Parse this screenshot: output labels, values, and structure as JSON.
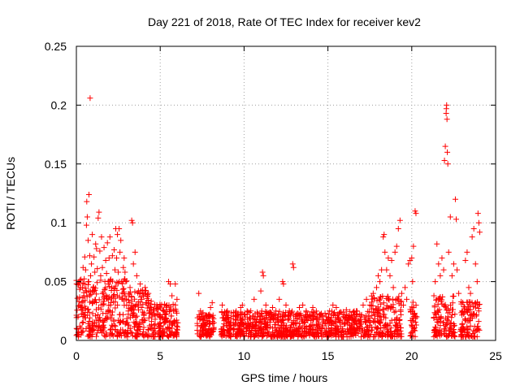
{
  "chart_data": {
    "type": "scatter",
    "title": "Day 221 of 2018, Rate Of TEC Index for receiver kev2",
    "xlabel": "GPS time / hours",
    "ylabel": "ROTI / TECUs",
    "xlim": [
      0,
      25
    ],
    "ylim": [
      0,
      0.25
    ],
    "xticks": [
      0,
      5,
      10,
      15,
      20,
      25
    ],
    "xtick_labels": [
      "0",
      "5",
      "10",
      "15",
      "20",
      "25"
    ],
    "yticks": [
      0,
      0.05,
      0.1,
      0.15,
      0.2,
      0.25
    ],
    "ytick_labels": [
      "0",
      "0.05",
      "0.1",
      "0.15",
      "0.2",
      "0.25"
    ],
    "grid": true,
    "marker": "+",
    "color": "#ff0000",
    "series": [
      {
        "name": "ROTI",
        "points": [
          [
            0.0,
            0.051
          ],
          [
            0.05,
            0.005
          ],
          [
            0.1,
            0.02
          ],
          [
            0.15,
            0.033
          ],
          [
            0.2,
            0.012
          ],
          [
            0.25,
            0.045
          ],
          [
            0.3,
            0.028
          ],
          [
            0.35,
            0.015
          ],
          [
            0.4,
            0.062
          ],
          [
            0.45,
            0.038
          ],
          [
            0.5,
            0.071
          ],
          [
            0.55,
            0.06
          ],
          [
            0.6,
            0.098
          ],
          [
            0.62,
            0.118
          ],
          [
            0.65,
            0.105
          ],
          [
            0.7,
            0.085
          ],
          [
            0.75,
            0.124
          ],
          [
            0.8,
            0.072
          ],
          [
            0.82,
            0.206
          ],
          [
            0.85,
            0.055
          ],
          [
            0.9,
            0.065
          ],
          [
            0.95,
            0.09
          ],
          [
            1.0,
            0.045
          ],
          [
            1.05,
            0.071
          ],
          [
            1.1,
            0.058
          ],
          [
            1.15,
            0.082
          ],
          [
            1.2,
            0.078
          ],
          [
            1.25,
            0.061
          ],
          [
            1.3,
            0.104
          ],
          [
            1.35,
            0.109
          ],
          [
            1.4,
            0.076
          ],
          [
            1.45,
            0.055
          ],
          [
            1.5,
            0.088
          ],
          [
            1.55,
            0.062
          ],
          [
            1.6,
            0.041
          ],
          [
            1.65,
            0.079
          ],
          [
            1.7,
            0.05
          ],
          [
            1.75,
            0.068
          ],
          [
            1.8,
            0.057
          ],
          [
            1.85,
            0.083
          ],
          [
            1.9,
            0.048
          ],
          [
            1.95,
            0.07
          ],
          [
            2.0,
            0.088
          ],
          [
            2.05,
            0.052
          ],
          [
            2.1,
            0.045
          ],
          [
            2.15,
            0.072
          ],
          [
            2.2,
            0.038
          ],
          [
            2.25,
            0.077
          ],
          [
            2.3,
            0.06
          ],
          [
            2.35,
            0.095
          ],
          [
            2.4,
            0.07
          ],
          [
            2.45,
            0.09
          ],
          [
            2.5,
            0.058
          ],
          [
            2.55,
            0.095
          ],
          [
            2.6,
            0.075
          ],
          [
            2.65,
            0.085
          ],
          [
            2.7,
            0.05
          ],
          [
            2.75,
            0.035
          ],
          [
            2.8,
            0.062
          ],
          [
            2.85,
            0.07
          ],
          [
            2.9,
            0.058
          ],
          [
            2.95,
            0.05
          ],
          [
            3.0,
            0.03
          ],
          [
            3.1,
            0.025
          ],
          [
            3.2,
            0.045
          ],
          [
            3.3,
            0.102
          ],
          [
            3.35,
            0.1
          ],
          [
            3.4,
            0.065
          ],
          [
            3.5,
            0.075
          ],
          [
            3.6,
            0.055
          ],
          [
            3.7,
            0.042
          ],
          [
            3.8,
            0.048
          ],
          [
            3.9,
            0.035
          ],
          [
            4.0,
            0.038
          ],
          [
            4.1,
            0.045
          ],
          [
            4.2,
            0.032
          ],
          [
            4.3,
            0.04
          ],
          [
            4.4,
            0.028
          ],
          [
            4.5,
            0.02
          ],
          [
            4.6,
            0.025
          ],
          [
            4.7,
            0.018
          ],
          [
            4.8,
            0.03
          ],
          [
            4.9,
            0.022
          ],
          [
            5.0,
            0.015
          ],
          [
            5.1,
            0.02
          ],
          [
            5.2,
            0.026
          ],
          [
            5.3,
            0.018
          ],
          [
            5.4,
            0.03
          ],
          [
            5.5,
            0.05
          ],
          [
            5.6,
            0.048
          ],
          [
            5.7,
            0.038
          ],
          [
            5.8,
            0.025
          ],
          [
            5.9,
            0.048
          ],
          [
            6.0,
            0.035
          ],
          [
            6.05,
            0.015
          ],
          [
            7.3,
            0.04
          ],
          [
            7.4,
            0.025
          ],
          [
            7.5,
            0.018
          ],
          [
            7.6,
            0.012
          ],
          [
            7.7,
            0.008
          ],
          [
            7.9,
            0.02
          ],
          [
            8.0,
            0.028
          ],
          [
            8.1,
            0.032
          ],
          [
            8.2,
            0.015
          ],
          [
            8.7,
            0.03
          ],
          [
            8.8,
            0.022
          ],
          [
            8.9,
            0.018
          ],
          [
            9.0,
            0.025
          ],
          [
            9.2,
            0.015
          ],
          [
            9.4,
            0.01
          ],
          [
            9.6,
            0.02
          ],
          [
            9.8,
            0.028
          ],
          [
            9.9,
            0.03
          ],
          [
            10.0,
            0.022
          ],
          [
            10.2,
            0.018
          ],
          [
            10.4,
            0.025
          ],
          [
            10.6,
            0.035
          ],
          [
            10.8,
            0.02
          ],
          [
            11.0,
            0.042
          ],
          [
            11.1,
            0.058
          ],
          [
            11.15,
            0.055
          ],
          [
            11.3,
            0.03
          ],
          [
            11.5,
            0.022
          ],
          [
            11.7,
            0.028
          ],
          [
            11.9,
            0.025
          ],
          [
            12.1,
            0.035
          ],
          [
            12.3,
            0.05
          ],
          [
            12.35,
            0.048
          ],
          [
            12.5,
            0.03
          ],
          [
            12.7,
            0.025
          ],
          [
            12.9,
            0.065
          ],
          [
            12.95,
            0.062
          ],
          [
            13.1,
            0.022
          ],
          [
            13.3,
            0.028
          ],
          [
            13.5,
            0.03
          ],
          [
            13.7,
            0.025
          ],
          [
            13.9,
            0.02
          ],
          [
            14.1,
            0.028
          ],
          [
            14.3,
            0.018
          ],
          [
            14.5,
            0.022
          ],
          [
            14.7,
            0.015
          ],
          [
            14.9,
            0.02
          ],
          [
            15.1,
            0.025
          ],
          [
            15.3,
            0.03
          ],
          [
            15.5,
            0.028
          ],
          [
            15.7,
            0.015
          ],
          [
            15.9,
            0.022
          ],
          [
            16.1,
            0.026
          ],
          [
            16.3,
            0.02
          ],
          [
            16.5,
            0.024
          ],
          [
            16.7,
            0.025
          ],
          [
            16.9,
            0.022
          ],
          [
            17.1,
            0.03
          ],
          [
            17.3,
            0.035
          ],
          [
            17.5,
            0.03
          ],
          [
            17.7,
            0.04
          ],
          [
            17.9,
            0.045
          ],
          [
            18.0,
            0.055
          ],
          [
            18.1,
            0.05
          ],
          [
            18.2,
            0.06
          ],
          [
            18.3,
            0.088
          ],
          [
            18.35,
            0.09
          ],
          [
            18.4,
            0.075
          ],
          [
            18.5,
            0.06
          ],
          [
            18.6,
            0.07
          ],
          [
            18.7,
            0.055
          ],
          [
            18.8,
            0.068
          ],
          [
            18.9,
            0.045
          ],
          [
            19.0,
            0.075
          ],
          [
            19.1,
            0.08
          ],
          [
            19.2,
            0.095
          ],
          [
            19.3,
            0.102
          ],
          [
            19.4,
            0.04
          ],
          [
            19.5,
            0.03
          ],
          [
            19.6,
            0.045
          ],
          [
            19.7,
            0.035
          ],
          [
            19.8,
            0.065
          ],
          [
            19.9,
            0.068
          ],
          [
            20.0,
            0.07
          ],
          [
            20.05,
            0.05
          ],
          [
            20.1,
            0.08
          ],
          [
            20.2,
            0.11
          ],
          [
            20.25,
            0.108
          ],
          [
            20.3,
            0.02
          ],
          [
            21.4,
            0.05
          ],
          [
            21.5,
            0.082
          ],
          [
            21.6,
            0.065
          ],
          [
            21.7,
            0.055
          ],
          [
            21.8,
            0.07
          ],
          [
            21.9,
            0.06
          ],
          [
            21.95,
            0.153
          ],
          [
            22.0,
            0.165
          ],
          [
            22.05,
            0.193
          ],
          [
            22.06,
            0.197
          ],
          [
            22.08,
            0.2
          ],
          [
            22.1,
            0.188
          ],
          [
            22.12,
            0.16
          ],
          [
            22.15,
            0.15
          ],
          [
            22.2,
            0.075
          ],
          [
            22.3,
            0.105
          ],
          [
            22.4,
            0.055
          ],
          [
            22.5,
            0.065
          ],
          [
            22.6,
            0.12
          ],
          [
            22.65,
            0.103
          ],
          [
            22.7,
            0.06
          ],
          [
            22.8,
            0.04
          ],
          [
            23.0,
            0.025
          ],
          [
            23.2,
            0.068
          ],
          [
            23.3,
            0.075
          ],
          [
            23.4,
            0.045
          ],
          [
            23.5,
            0.04
          ],
          [
            23.6,
            0.088
          ],
          [
            23.7,
            0.095
          ],
          [
            23.8,
            0.065
          ],
          [
            23.9,
            0.05
          ],
          [
            23.95,
            0.108
          ],
          [
            24.0,
            0.1
          ],
          [
            24.05,
            0.092
          ]
        ],
        "dense_bands": [
          [
            0.0,
            3.0,
            0.0,
            0.05
          ],
          [
            3.0,
            4.5,
            0.0,
            0.04
          ],
          [
            4.5,
            6.05,
            0.0,
            0.028
          ],
          [
            7.2,
            7.8,
            0.0,
            0.022
          ],
          [
            7.8,
            8.2,
            0.0,
            0.02
          ],
          [
            8.6,
            17.5,
            0.0,
            0.022
          ],
          [
            17.5,
            19.4,
            0.0,
            0.035
          ],
          [
            19.9,
            20.3,
            0.0,
            0.03
          ],
          [
            21.3,
            22.6,
            0.0,
            0.035
          ],
          [
            22.9,
            24.05,
            0.0,
            0.03
          ]
        ]
      }
    ]
  }
}
